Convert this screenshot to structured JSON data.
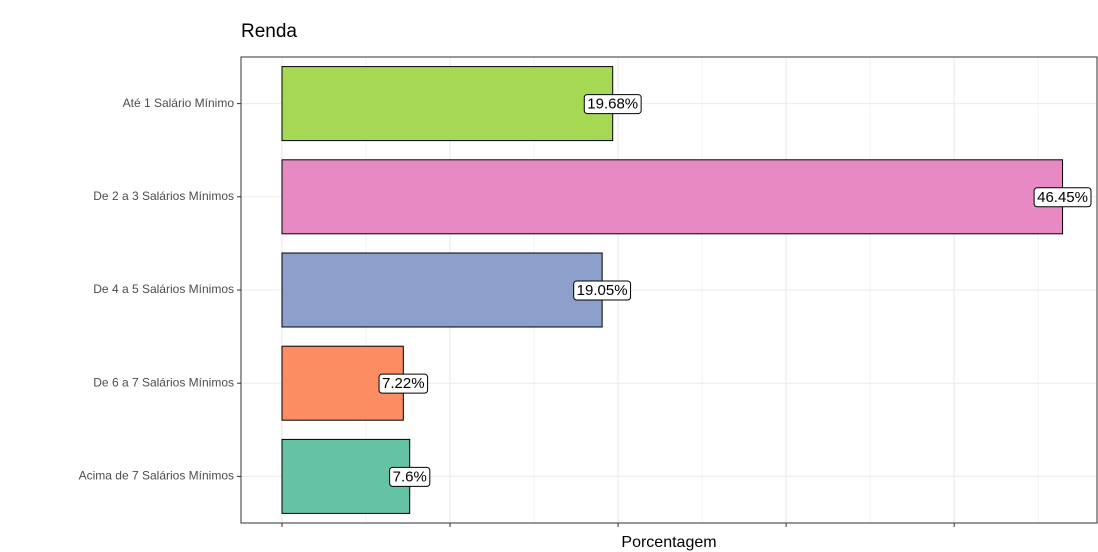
{
  "chart_data": {
    "type": "barh",
    "title": "Renda",
    "x_label": "Porcentagem",
    "categories": [
      "Até 1 Salário Mínimo",
      "De 2 a 3 Salários Mínimos",
      "De 4 a 5 Salários Mínimos",
      "De 6 a 7 Salários Mínimos",
      "Acima de 7 Salários Mínimos"
    ],
    "values": [
      19.68,
      46.45,
      19.05,
      7.22,
      7.6
    ],
    "value_labels": [
      "19.68%",
      "46.45%",
      "19.05%",
      "7.22%",
      "7.6%"
    ],
    "colors": [
      "#a6d854",
      "#e78ac3",
      "#8da0cb",
      "#fc8d62",
      "#66c2a5"
    ],
    "xlim": [
      -2.44,
      48.5
    ],
    "xticks": [
      0,
      10,
      20,
      30,
      40
    ],
    "grid": true
  }
}
